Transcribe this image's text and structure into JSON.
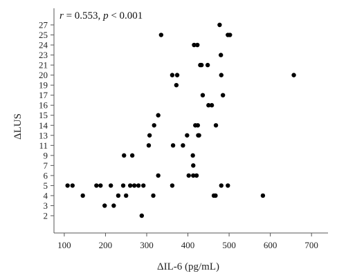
{
  "chart_data": {
    "type": "scatter",
    "title": "",
    "annotation": {
      "r_symbol": "r",
      "r_text": " = 0.553, ",
      "p_symbol": "p",
      "p_text": " < 0.001"
    },
    "xlabel": "ΔIL-6 (pg/mL)",
    "ylabel": "ΔLUS",
    "xlim": [
      75,
      740
    ],
    "ylim": [
      0.5,
      28.5
    ],
    "x_ticks": [
      100,
      200,
      300,
      400,
      500,
      600,
      700
    ],
    "y_ticks": [
      2,
      3,
      4,
      5,
      6,
      7,
      9,
      11,
      13,
      14,
      15,
      16,
      17,
      19,
      20,
      21,
      23,
      24,
      25,
      27
    ],
    "y_axis_note": "categorical-style axis: listed tick values are evenly spaced",
    "grid": false,
    "legend": "none",
    "marker_color": "#000000",
    "axis_color": "#555555",
    "points": [
      {
        "x": 108,
        "y": 5
      },
      {
        "x": 120,
        "y": 5
      },
      {
        "x": 145,
        "y": 4
      },
      {
        "x": 178,
        "y": 5
      },
      {
        "x": 188,
        "y": 5
      },
      {
        "x": 198,
        "y": 3
      },
      {
        "x": 213,
        "y": 5
      },
      {
        "x": 220,
        "y": 3
      },
      {
        "x": 231,
        "y": 4
      },
      {
        "x": 243,
        "y": 5
      },
      {
        "x": 245,
        "y": 9
      },
      {
        "x": 250,
        "y": 4
      },
      {
        "x": 260,
        "y": 5
      },
      {
        "x": 265,
        "y": 9
      },
      {
        "x": 270,
        "y": 5
      },
      {
        "x": 280,
        "y": 5
      },
      {
        "x": 288,
        "y": 2
      },
      {
        "x": 292,
        "y": 5
      },
      {
        "x": 305,
        "y": 11
      },
      {
        "x": 307,
        "y": 13
      },
      {
        "x": 316,
        "y": 4
      },
      {
        "x": 318,
        "y": 14
      },
      {
        "x": 328,
        "y": 15
      },
      {
        "x": 328,
        "y": 6
      },
      {
        "x": 335,
        "y": 25
      },
      {
        "x": 362,
        "y": 5
      },
      {
        "x": 362,
        "y": 20
      },
      {
        "x": 364,
        "y": 11
      },
      {
        "x": 372,
        "y": 19
      },
      {
        "x": 374,
        "y": 20
      },
      {
        "x": 388,
        "y": 11
      },
      {
        "x": 398,
        "y": 13
      },
      {
        "x": 402,
        "y": 6
      },
      {
        "x": 412,
        "y": 9
      },
      {
        "x": 413,
        "y": 7
      },
      {
        "x": 413,
        "y": 6
      },
      {
        "x": 415,
        "y": 24
      },
      {
        "x": 418,
        "y": 14
      },
      {
        "x": 421,
        "y": 6
      },
      {
        "x": 423,
        "y": 24
      },
      {
        "x": 424,
        "y": 14
      },
      {
        "x": 425,
        "y": 13
      },
      {
        "x": 427,
        "y": 13
      },
      {
        "x": 430,
        "y": 21
      },
      {
        "x": 433,
        "y": 21
      },
      {
        "x": 436,
        "y": 17
      },
      {
        "x": 448,
        "y": 21
      },
      {
        "x": 450,
        "y": 16
      },
      {
        "x": 458,
        "y": 16
      },
      {
        "x": 463,
        "y": 4
      },
      {
        "x": 467,
        "y": 4
      },
      {
        "x": 468,
        "y": 14
      },
      {
        "x": 477,
        "y": 27
      },
      {
        "x": 480,
        "y": 23
      },
      {
        "x": 481,
        "y": 20
      },
      {
        "x": 481,
        "y": 5
      },
      {
        "x": 485,
        "y": 17
      },
      {
        "x": 497,
        "y": 25
      },
      {
        "x": 497,
        "y": 5
      },
      {
        "x": 502,
        "y": 25
      },
      {
        "x": 582,
        "y": 4
      },
      {
        "x": 657,
        "y": 20
      }
    ]
  }
}
